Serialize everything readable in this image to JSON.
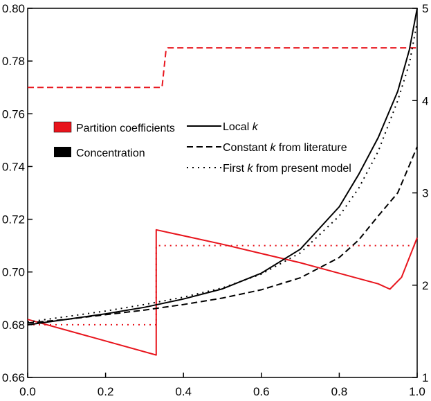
{
  "chart_data": {
    "type": "line",
    "title": "",
    "xlabel": "",
    "ylabel_left": "",
    "ylabel_right": "",
    "xlim": [
      0.0,
      1.0
    ],
    "ylim_left": [
      0.66,
      0.8
    ],
    "ylim_right": [
      1,
      5
    ],
    "grid": false,
    "x_ticks": [
      "0.0",
      "0.2",
      "0.4",
      "0.6",
      "0.8",
      "1.0"
    ],
    "y_left_ticks": [
      "0.66",
      "0.68",
      "0.70",
      "0.72",
      "0.74",
      "0.76",
      "0.78",
      "0.80"
    ],
    "y_right_ticks": [
      "1",
      "2",
      "3",
      "4",
      "5"
    ],
    "colors": {
      "partition": "#e8141c",
      "concentration": "#000000"
    },
    "color_legend": [
      {
        "label": "Partition coefficients",
        "color": "#e8141c"
      },
      {
        "label": "Concentration",
        "color": "#000000"
      }
    ],
    "style_legend": [
      {
        "label_prefix": "Local ",
        "label_k": "k",
        "label_suffix": "",
        "dash": "solid"
      },
      {
        "label_prefix": "Constant ",
        "label_k": "k",
        "label_suffix": " from literature",
        "dash": "dashed"
      },
      {
        "label_prefix": "First ",
        "label_k": "k",
        "label_suffix": " from present model",
        "dash": "dotted"
      }
    ],
    "series": [
      {
        "axis": "left",
        "color": "partition",
        "dash": "solid",
        "x": [
          0.0,
          0.33,
          0.33,
          0.5,
          0.7,
          0.9,
          0.93,
          0.96,
          1.0
        ],
        "y": [
          0.682,
          0.6685,
          0.716,
          0.7105,
          0.7035,
          0.6955,
          0.6935,
          0.698,
          0.713
        ]
      },
      {
        "axis": "left",
        "color": "partition",
        "dash": "dashed",
        "x": [
          0.0,
          0.345,
          0.355,
          0.36,
          1.0
        ],
        "y": [
          0.77,
          0.77,
          0.784,
          0.785,
          0.785
        ]
      },
      {
        "axis": "left",
        "color": "partition",
        "dash": "dotted",
        "x": [
          0.0,
          0.33,
          0.33,
          1.0
        ],
        "y": [
          0.68,
          0.68,
          0.71,
          0.71
        ]
      },
      {
        "axis": "right",
        "color": "concentration",
        "dash": "solid",
        "x": [
          0.0,
          0.1,
          0.2,
          0.3,
          0.4,
          0.5,
          0.6,
          0.7,
          0.8,
          0.85,
          0.9,
          0.95,
          0.98,
          1.0
        ],
        "y": [
          1.57,
          1.63,
          1.69,
          1.76,
          1.85,
          1.96,
          2.13,
          2.39,
          2.85,
          3.2,
          3.6,
          4.1,
          4.55,
          5.0
        ]
      },
      {
        "axis": "right",
        "color": "concentration",
        "dash": "dashed",
        "x": [
          0.0,
          0.1,
          0.2,
          0.3,
          0.4,
          0.5,
          0.6,
          0.7,
          0.8,
          0.85,
          0.9,
          0.95,
          1.0
        ],
        "y": [
          1.59,
          1.63,
          1.68,
          1.73,
          1.79,
          1.86,
          1.95,
          2.08,
          2.3,
          2.49,
          2.75,
          3.0,
          3.5
        ]
      },
      {
        "axis": "right",
        "color": "concentration",
        "dash": "dotted",
        "x": [
          0.0,
          0.1,
          0.2,
          0.3,
          0.4,
          0.5,
          0.6,
          0.7,
          0.8,
          0.85,
          0.9,
          0.95,
          0.98,
          1.0
        ],
        "y": [
          1.6,
          1.66,
          1.72,
          1.79,
          1.87,
          1.97,
          2.12,
          2.35,
          2.75,
          3.05,
          3.45,
          4.0,
          4.4,
          4.85
        ]
      }
    ]
  }
}
